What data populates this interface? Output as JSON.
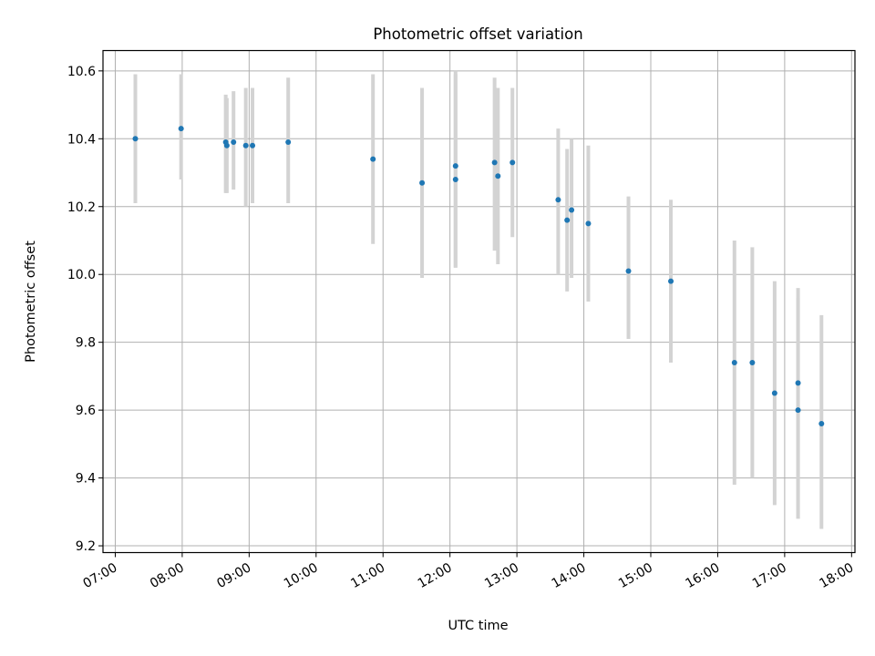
{
  "chart_data": {
    "type": "scatter",
    "title": "Photometric offset variation",
    "xlabel": "UTC time",
    "ylabel": "Photometric offset",
    "x_tick_labels": [
      "07:00",
      "08:00",
      "09:00",
      "10:00",
      "11:00",
      "12:00",
      "13:00",
      "14:00",
      "15:00",
      "16:00",
      "17:00",
      "18:00"
    ],
    "y_tick_labels": [
      "9.2",
      "9.4",
      "9.6",
      "9.8",
      "10.0",
      "10.2",
      "10.4",
      "10.6"
    ],
    "xlim": [
      "06:49",
      "18:03"
    ],
    "ylim": [
      9.18,
      10.66
    ],
    "grid": true,
    "point_color": "#1f77b4",
    "errorbar_color": "#d3d3d3",
    "points": [
      {
        "x": "07:18",
        "y": 10.4,
        "lo": 10.21,
        "hi": 10.59
      },
      {
        "x": "07:59",
        "y": 10.43,
        "lo": 10.28,
        "hi": 10.59
      },
      {
        "x": "08:39",
        "y": 10.39,
        "lo": 10.24,
        "hi": 10.53
      },
      {
        "x": "08:40",
        "y": 10.38,
        "lo": 10.24,
        "hi": 10.52
      },
      {
        "x": "08:46",
        "y": 10.39,
        "lo": 10.25,
        "hi": 10.54
      },
      {
        "x": "08:57",
        "y": 10.38,
        "lo": 10.2,
        "hi": 10.55
      },
      {
        "x": "09:03",
        "y": 10.38,
        "lo": 10.21,
        "hi": 10.55
      },
      {
        "x": "09:35",
        "y": 10.39,
        "lo": 10.21,
        "hi": 10.58
      },
      {
        "x": "10:51",
        "y": 10.34,
        "lo": 10.09,
        "hi": 10.59
      },
      {
        "x": "11:35",
        "y": 10.27,
        "lo": 9.99,
        "hi": 10.55
      },
      {
        "x": "12:05",
        "y": 10.32,
        "lo": 10.02,
        "hi": 10.59
      },
      {
        "x": "12:05",
        "y": 10.28,
        "lo": 10.02,
        "hi": 10.6
      },
      {
        "x": "12:40",
        "y": 10.33,
        "lo": 10.07,
        "hi": 10.58
      },
      {
        "x": "12:43",
        "y": 10.29,
        "lo": 10.03,
        "hi": 10.55
      },
      {
        "x": "12:56",
        "y": 10.33,
        "lo": 10.11,
        "hi": 10.55
      },
      {
        "x": "13:37",
        "y": 10.22,
        "lo": 10.0,
        "hi": 10.43
      },
      {
        "x": "13:45",
        "y": 10.16,
        "lo": 9.95,
        "hi": 10.37
      },
      {
        "x": "13:49",
        "y": 10.19,
        "lo": 9.99,
        "hi": 10.4
      },
      {
        "x": "14:04",
        "y": 10.15,
        "lo": 9.92,
        "hi": 10.38
      },
      {
        "x": "14:40",
        "y": 10.01,
        "lo": 9.81,
        "hi": 10.23
      },
      {
        "x": "15:18",
        "y": 9.98,
        "lo": 9.74,
        "hi": 10.22
      },
      {
        "x": "16:15",
        "y": 9.74,
        "lo": 9.38,
        "hi": 10.1
      },
      {
        "x": "16:31",
        "y": 9.74,
        "lo": 9.4,
        "hi": 10.08
      },
      {
        "x": "16:51",
        "y": 9.65,
        "lo": 9.32,
        "hi": 9.98
      },
      {
        "x": "17:12",
        "y": 9.68,
        "lo": 9.28,
        "hi": 9.96
      },
      {
        "x": "17:12",
        "y": 9.6,
        "lo": 9.28,
        "hi": 9.93
      },
      {
        "x": "17:33",
        "y": 9.56,
        "lo": 9.25,
        "hi": 9.88
      }
    ]
  }
}
